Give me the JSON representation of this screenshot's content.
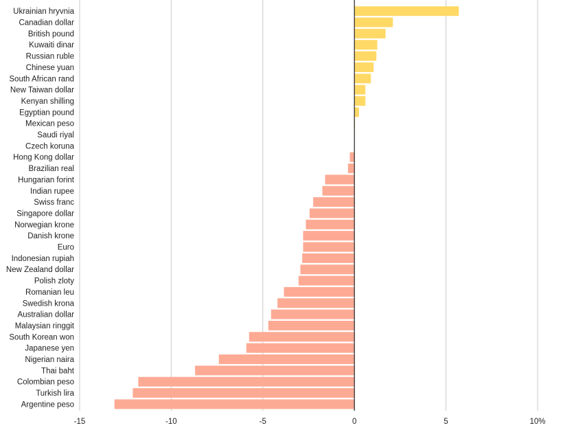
{
  "chart_data": {
    "type": "bar",
    "orientation": "horizontal",
    "title": "",
    "xlabel": "",
    "ylabel": "",
    "xlim": [
      -15,
      10
    ],
    "x_ticks": [
      -15,
      -10,
      -5,
      0,
      5,
      10
    ],
    "x_tick_labels": [
      "-15",
      "-10",
      "-5",
      "0",
      "5",
      "10%"
    ],
    "grid": "vertical",
    "colors": {
      "positive": "#ffd966",
      "negative": "#fdaa94",
      "zero_line": "#222222",
      "grid": "#c8c8c8"
    },
    "categories": [
      "Ukrainian hryvnia",
      "Canadian dollar",
      "British pound",
      "Kuwaiti dinar",
      "Russian ruble",
      "Chinese yuan",
      "South African rand",
      "New Taiwan dollar",
      "Kenyan shilling",
      "Egyptian pound",
      "Mexican peso",
      "Saudi riyal",
      "Czech koruna",
      "Hong Kong dollar",
      "Brazilian real",
      "Hungarian forint",
      "Indian rupee",
      "Swiss franc",
      "Singapore dollar",
      "Norwegian krone",
      "Danish krone",
      "Euro",
      "Indonesian rupiah",
      "New Zealand dollar",
      "Polish zloty",
      "Romanian leu",
      "Swedish krona",
      "Australian dollar",
      "Malaysian ringgit",
      "South Korean won",
      "Japanese yen",
      "Nigerian naira",
      "Thai baht",
      "Colombian peso",
      "Turkish lira",
      "Argentine peso"
    ],
    "values": [
      5.7,
      2.1,
      1.7,
      1.25,
      1.2,
      1.05,
      0.9,
      0.6,
      0.6,
      0.25,
      0.03,
      0.01,
      0.0,
      -0.25,
      -0.35,
      -1.6,
      -1.75,
      -2.25,
      -2.45,
      -2.65,
      -2.8,
      -2.8,
      -2.85,
      -2.95,
      -3.05,
      -3.85,
      -4.2,
      -4.55,
      -4.7,
      -5.75,
      -5.9,
      -7.4,
      -8.7,
      -11.8,
      -12.1,
      -13.1
    ]
  }
}
